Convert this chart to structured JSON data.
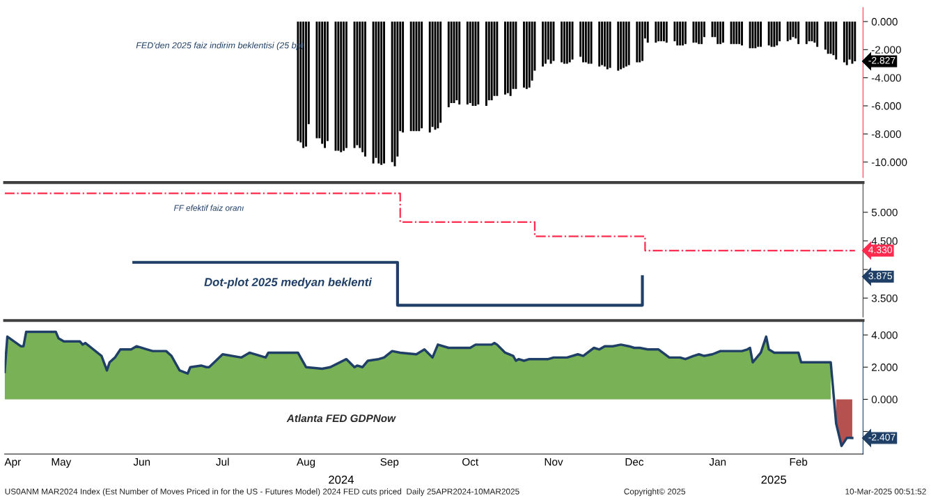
{
  "chart_data": [
    {
      "type": "bar",
      "xlim": [
        "2024-04-25",
        "2025-03-10"
      ],
      "ylim": [
        -11.1,
        1.0
      ],
      "tick_labels": "y",
      "yticks": [
        {
          "value": 0,
          "label": "0.000"
        },
        {
          "value": -2,
          "label": "-2.000"
        },
        {
          "value": -4,
          "label": "-4.000"
        },
        {
          "value": -6,
          "label": "-6.000"
        },
        {
          "value": -8,
          "label": "-8.000"
        },
        {
          "value": -10,
          "label": "-10.000"
        }
      ],
      "series": [
        {
          "name": "FED'den 2025 faiz indirim beklentisi (25 bp)",
          "color": "#000000",
          "x": [
            "2024-08-12",
            "2024-08-13",
            "2024-08-14",
            "2024-08-15",
            "2024-08-16",
            "2024-08-19",
            "2024-08-20",
            "2024-08-21",
            "2024-08-22",
            "2024-08-23",
            "2024-08-26",
            "2024-08-27",
            "2024-08-28",
            "2024-08-29",
            "2024-08-30",
            "2024-09-02",
            "2024-09-03",
            "2024-09-04",
            "2024-09-05",
            "2024-09-06",
            "2024-09-09",
            "2024-09-10",
            "2024-09-11",
            "2024-09-12",
            "2024-09-13",
            "2024-09-16",
            "2024-09-17",
            "2024-09-18",
            "2024-09-19",
            "2024-09-20",
            "2024-09-23",
            "2024-09-24",
            "2024-09-25",
            "2024-09-26",
            "2024-09-27",
            "2024-09-30",
            "2024-10-01",
            "2024-10-02",
            "2024-10-03",
            "2024-10-04",
            "2024-10-07",
            "2024-10-08",
            "2024-10-09",
            "2024-10-10",
            "2024-10-11",
            "2024-10-14",
            "2024-10-15",
            "2024-10-16",
            "2024-10-17",
            "2024-10-18",
            "2024-10-21",
            "2024-10-22",
            "2024-10-23",
            "2024-10-24",
            "2024-10-25",
            "2024-10-28",
            "2024-10-29",
            "2024-10-30",
            "2024-10-31",
            "2024-11-01",
            "2024-11-04",
            "2024-11-05",
            "2024-11-06",
            "2024-11-07",
            "2024-11-08",
            "2024-11-11",
            "2024-11-12",
            "2024-11-13",
            "2024-11-14",
            "2024-11-15",
            "2024-11-18",
            "2024-11-19",
            "2024-11-20",
            "2024-11-21",
            "2024-11-22",
            "2024-11-25",
            "2024-11-26",
            "2024-11-27",
            "2024-11-28",
            "2024-11-29",
            "2024-12-02",
            "2024-12-03",
            "2024-12-04",
            "2024-12-05",
            "2024-12-06",
            "2024-12-09",
            "2024-12-10",
            "2024-12-11",
            "2024-12-12",
            "2024-12-13",
            "2024-12-16",
            "2024-12-17",
            "2024-12-18",
            "2024-12-19",
            "2024-12-20",
            "2024-12-23",
            "2024-12-24",
            "2024-12-25",
            "2024-12-26",
            "2024-12-27",
            "2024-12-30",
            "2024-12-31",
            "2025-01-01",
            "2025-01-02",
            "2025-01-03",
            "2025-01-06",
            "2025-01-07",
            "2025-01-08",
            "2025-01-09",
            "2025-01-10",
            "2025-01-13",
            "2025-01-14",
            "2025-01-15",
            "2025-01-16",
            "2025-01-17",
            "2025-01-20",
            "2025-01-21",
            "2025-01-22",
            "2025-01-23",
            "2025-01-24",
            "2025-01-27",
            "2025-01-28",
            "2025-01-29",
            "2025-01-30",
            "2025-01-31",
            "2025-02-03",
            "2025-02-04",
            "2025-02-05",
            "2025-02-06",
            "2025-02-07",
            "2025-02-10",
            "2025-02-11",
            "2025-02-12",
            "2025-02-13",
            "2025-02-14",
            "2025-02-17",
            "2025-02-18",
            "2025-02-19",
            "2025-02-20",
            "2025-02-21",
            "2025-02-24",
            "2025-02-25",
            "2025-02-26",
            "2025-02-27",
            "2025-02-28",
            "2025-03-03",
            "2025-03-04",
            "2025-03-05",
            "2025-03-06",
            "2025-03-07"
          ],
          "values": [
            -8.5,
            -8.6,
            -9.0,
            -8.9,
            -7.3,
            -8.3,
            -8.3,
            -8.7,
            -9.0,
            -8.5,
            -9.2,
            -9.2,
            -9.3,
            -9.2,
            -9.0,
            -9.0,
            -8.8,
            -9.0,
            -9.3,
            -9.6,
            -10.1,
            -9.7,
            -10.1,
            -10.2,
            -10.1,
            -10.0,
            -10.3,
            -9.6,
            -7.8,
            -7.9,
            -7.8,
            -7.8,
            -7.8,
            -7.8,
            -7.6,
            -7.9,
            -7.5,
            -7.7,
            -7.6,
            -7.2,
            -6.1,
            -5.8,
            -5.8,
            -5.6,
            -5.9,
            -5.9,
            -5.8,
            -6.0,
            -6.0,
            -5.9,
            -6.0,
            -5.6,
            -5.6,
            -5.3,
            -5.3,
            -5.2,
            -5.1,
            -5.3,
            -4.8,
            -4.8,
            -4.7,
            -4.8,
            -4.7,
            -4.2,
            -3.5,
            -3.2,
            -3.0,
            -2.7,
            -3.0,
            -2.8,
            -2.9,
            -3.0,
            -3.0,
            -2.9,
            -2.7,
            -2.5,
            -2.9,
            -2.9,
            -3.0,
            -3.0,
            -3.2,
            -3.1,
            -3.2,
            -3.4,
            -3.3,
            -3.5,
            -3.4,
            -3.3,
            -3.2,
            -3.1,
            -2.9,
            -2.9,
            -2.8,
            -1.2,
            -1.5,
            -1.5,
            -1.4,
            -1.4,
            -1.4,
            -1.5,
            -1.4,
            -1.7,
            -1.7,
            -1.7,
            -1.6,
            -1.5,
            -1.5,
            -1.6,
            -1.6,
            -1.1,
            -1.1,
            -1.1,
            -1.6,
            -1.6,
            -1.5,
            -1.6,
            -1.6,
            -1.6,
            -1.6,
            -1.7,
            -1.9,
            -1.9,
            -1.9,
            -1.8,
            -1.8,
            -1.7,
            -1.8,
            -1.8,
            -1.7,
            -1.4,
            -1.4,
            -1.3,
            -1.1,
            -1.2,
            -1.6,
            -1.6,
            -1.4,
            -1.4,
            -1.5,
            -1.8,
            -2.0,
            -2.3,
            -2.3,
            -2.4,
            -2.7,
            -2.9,
            -3.1,
            -2.7,
            -3.0,
            -2.827
          ]
        }
      ],
      "annotations": [
        {
          "text": "-2.827",
          "x": "2025-03-07",
          "y": -2.827
        }
      ]
    },
    {
      "type": "step",
      "xlim": [
        "2024-04-25",
        "2025-03-10"
      ],
      "ylim": [
        3.17,
        5.52
      ],
      "tick_labels": "y",
      "yticks": [
        {
          "value": 3.5,
          "label": "3.500"
        },
        {
          "value": 4.0,
          "label": null
        },
        {
          "value": 4.5,
          "label": "4.500"
        },
        {
          "value": 5.0,
          "label": "5.000"
        }
      ],
      "series": [
        {
          "name": "FF efektif faiz oranı",
          "color": "#ff2a4d",
          "line_style": "dashdot",
          "x": [
            "2024-04-25",
            "2024-09-19",
            "2024-11-08",
            "2024-12-19",
            "2025-03-07"
          ],
          "values": [
            5.33,
            4.83,
            4.58,
            4.33,
            4.33
          ]
        },
        {
          "name": "Dot-plot 2025 medyan beklenti",
          "color": "#1f3f66",
          "line_style": "solid",
          "x": [
            "2024-06-12",
            "2024-09-18",
            "2024-12-18"
          ],
          "values": [
            4.125,
            3.375,
            3.875
          ]
        }
      ],
      "annotations": [
        {
          "text": "4.330",
          "x": "2025-03-07",
          "y": 4.33
        },
        "3.875"
      ]
    },
    {
      "type": "area",
      "xlim": [
        "2024-04-25",
        "2025-03-10"
      ],
      "ylim": [
        -3.4,
        4.9
      ],
      "yticks": [
        {
          "value": -2,
          "label": null
        },
        {
          "value": 0,
          "label": "0.000"
        },
        {
          "value": 2,
          "label": "2.000"
        },
        {
          "value": 4,
          "label": "4.000"
        }
      ],
      "xticks": [
        {
          "value": "2024-04-28",
          "label": "Apr"
        },
        {
          "value": "2024-05-16",
          "label": "May"
        },
        {
          "value": "2024-06-15",
          "label": "Jun"
        },
        {
          "value": "2024-07-15",
          "label": "Jul"
        },
        {
          "value": "2024-08-15",
          "label": "Aug"
        },
        {
          "value": "2024-09-15",
          "label": "Sep"
        },
        {
          "value": "2024-10-15",
          "label": "Oct"
        },
        {
          "value": "2024-11-15",
          "label": "Nov"
        },
        {
          "value": "2024-12-15",
          "label": "Dec"
        },
        {
          "value": "2025-01-15",
          "label": "Jan"
        },
        {
          "value": "2025-02-14",
          "label": "Feb"
        }
      ],
      "series": [
        {
          "type": "area",
          "color": "#79b256",
          "x": [
            "2024-04-25",
            "2024-04-26",
            "2024-05-01",
            "2024-05-02",
            "2024-05-03",
            "2024-05-08",
            "2024-05-14",
            "2024-05-15",
            "2024-05-17",
            "2024-05-23",
            "2024-05-24",
            "2024-05-25",
            "2024-05-31",
            "2024-06-02",
            "2024-06-03",
            "2024-06-05",
            "2024-06-07",
            "2024-06-11",
            "2024-06-13",
            "2024-06-17",
            "2024-06-19",
            "2024-06-24",
            "2024-06-26",
            "2024-06-29",
            "2024-07-02",
            "2024-07-03",
            "2024-07-07",
            "2024-07-09",
            "2024-07-10",
            "2024-07-15",
            "2024-07-22",
            "2024-07-25",
            "2024-07-31",
            "2024-08-01",
            "2024-08-12",
            "2024-08-15",
            "2024-08-21",
            "2024-08-24",
            "2024-08-30",
            "2024-09-02",
            "2024-09-03",
            "2024-09-05",
            "2024-09-07",
            "2024-09-11",
            "2024-09-13",
            "2024-09-16",
            "2024-09-19",
            "2024-09-25",
            "2024-09-28",
            "2024-10-01",
            "2024-10-03",
            "2024-10-07",
            "2024-10-15",
            "2024-10-17",
            "2024-10-23",
            "2024-10-24",
            "2024-10-25",
            "2024-10-28",
            "2024-10-31",
            "2024-11-01",
            "2024-11-02",
            "2024-11-04",
            "2024-11-06",
            "2024-11-13",
            "2024-11-15",
            "2024-11-20",
            "2024-11-24",
            "2024-11-26",
            "2024-11-30",
            "2024-12-02",
            "2024-12-04",
            "2024-12-07",
            "2024-12-10",
            "2024-12-13",
            "2024-12-15",
            "2024-12-17",
            "2024-12-20",
            "2024-12-24",
            "2024-12-28",
            "2025-01-01",
            "2025-01-03",
            "2025-01-06",
            "2025-01-08",
            "2025-01-10",
            "2025-01-13",
            "2025-01-16",
            "2025-01-24",
            "2025-01-26",
            "2025-01-27",
            "2025-01-28",
            "2025-01-31",
            "2025-02-02",
            "2025-02-03",
            "2025-02-05",
            "2025-02-14",
            "2025-02-15",
            "2025-02-26"
          ],
          "values": [
            1.7,
            3.9,
            3.3,
            3.3,
            4.2,
            4.2,
            4.2,
            3.8,
            3.6,
            3.6,
            3.4,
            3.5,
            2.7,
            1.8,
            2.3,
            2.6,
            3.1,
            3.1,
            3.3,
            3.1,
            3.0,
            3.0,
            2.7,
            1.8,
            1.6,
            2.0,
            2.1,
            2.0,
            2.0,
            2.8,
            2.6,
            2.9,
            2.6,
            2.9,
            2.9,
            2.0,
            1.9,
            2.0,
            2.5,
            2.0,
            2.1,
            2.0,
            2.4,
            2.5,
            2.6,
            3.0,
            2.9,
            2.8,
            3.1,
            2.6,
            3.4,
            3.2,
            3.2,
            3.4,
            3.4,
            3.5,
            3.4,
            2.9,
            2.7,
            2.4,
            2.5,
            2.4,
            2.5,
            2.5,
            2.6,
            2.6,
            2.8,
            2.7,
            3.2,
            3.1,
            3.3,
            3.3,
            3.4,
            3.3,
            3.2,
            3.2,
            3.1,
            3.1,
            2.6,
            2.6,
            2.5,
            2.7,
            2.8,
            2.7,
            2.8,
            3.0,
            3.0,
            3.1,
            3.2,
            2.3,
            2.9,
            3.9,
            3.1,
            2.9,
            2.9,
            2.3,
            2.3
          ]
        },
        {
          "type": "area",
          "color": "#b5514e",
          "x": [
            "2025-02-28",
            "2025-03-02",
            "2025-03-04",
            "2025-03-05",
            "2025-03-06"
          ],
          "values": [
            -1.5,
            -2.9,
            -2.4,
            -2.4,
            -2.407
          ]
        },
        {
          "type": "line",
          "name": "Atlanta FED GDPNow",
          "color": "#1f3f66",
          "x": [
            "2024-04-25",
            "2024-04-26",
            "2024-05-01",
            "2024-05-02",
            "2024-05-03",
            "2024-05-08",
            "2024-05-14",
            "2024-05-15",
            "2024-05-17",
            "2024-05-23",
            "2024-05-24",
            "2024-05-25",
            "2024-05-31",
            "2024-06-02",
            "2024-06-03",
            "2024-06-05",
            "2024-06-07",
            "2024-06-11",
            "2024-06-13",
            "2024-06-17",
            "2024-06-19",
            "2024-06-24",
            "2024-06-26",
            "2024-06-29",
            "2024-07-02",
            "2024-07-03",
            "2024-07-07",
            "2024-07-09",
            "2024-07-10",
            "2024-07-15",
            "2024-07-22",
            "2024-07-25",
            "2024-07-31",
            "2024-08-01",
            "2024-08-12",
            "2024-08-15",
            "2024-08-21",
            "2024-08-24",
            "2024-08-30",
            "2024-09-02",
            "2024-09-03",
            "2024-09-05",
            "2024-09-07",
            "2024-09-11",
            "2024-09-13",
            "2024-09-16",
            "2024-09-19",
            "2024-09-25",
            "2024-09-28",
            "2024-10-01",
            "2024-10-03",
            "2024-10-07",
            "2024-10-15",
            "2024-10-17",
            "2024-10-23",
            "2024-10-24",
            "2024-10-25",
            "2024-10-28",
            "2024-10-31",
            "2024-11-01",
            "2024-11-02",
            "2024-11-04",
            "2024-11-06",
            "2024-11-13",
            "2024-11-15",
            "2024-11-20",
            "2024-11-24",
            "2024-11-26",
            "2024-11-30",
            "2024-12-02",
            "2024-12-04",
            "2024-12-07",
            "2024-12-10",
            "2024-12-13",
            "2024-12-15",
            "2024-12-17",
            "2024-12-20",
            "2024-12-24",
            "2024-12-28",
            "2025-01-01",
            "2025-01-03",
            "2025-01-06",
            "2025-01-08",
            "2025-01-10",
            "2025-01-13",
            "2025-01-16",
            "2025-01-24",
            "2025-01-26",
            "2025-01-27",
            "2025-01-28",
            "2025-01-31",
            "2025-02-02",
            "2025-02-03",
            "2025-02-05",
            "2025-02-14",
            "2025-02-15",
            "2025-02-26",
            "2025-02-28",
            "2025-03-02",
            "2025-03-04",
            "2025-03-05",
            "2025-03-06"
          ],
          "values": [
            1.7,
            3.9,
            3.3,
            3.3,
            4.2,
            4.2,
            4.2,
            3.8,
            3.6,
            3.6,
            3.4,
            3.5,
            2.7,
            1.8,
            2.3,
            2.6,
            3.1,
            3.1,
            3.3,
            3.1,
            3.0,
            3.0,
            2.7,
            1.8,
            1.6,
            2.0,
            2.1,
            2.0,
            2.0,
            2.8,
            2.6,
            2.9,
            2.6,
            2.9,
            2.9,
            2.0,
            1.9,
            2.0,
            2.5,
            2.0,
            2.1,
            2.0,
            2.4,
            2.5,
            2.6,
            3.0,
            2.9,
            2.8,
            3.1,
            2.6,
            3.4,
            3.2,
            3.2,
            3.4,
            3.4,
            3.5,
            3.4,
            2.9,
            2.7,
            2.4,
            2.5,
            2.4,
            2.5,
            2.5,
            2.6,
            2.6,
            2.8,
            2.7,
            3.2,
            3.1,
            3.3,
            3.3,
            3.4,
            3.3,
            3.2,
            3.2,
            3.1,
            3.1,
            2.6,
            2.6,
            2.5,
            2.7,
            2.8,
            2.7,
            2.8,
            3.0,
            3.0,
            3.1,
            3.2,
            2.3,
            2.9,
            3.9,
            3.1,
            2.9,
            2.9,
            2.3,
            2.3,
            -1.5,
            -2.9,
            -2.4,
            -2.4,
            -2.407
          ]
        }
      ],
      "annotations": [
        {
          "text": "-2.407",
          "x": "2025-03-06",
          "y": -2.407
        },
        "2024",
        "2025",
        "US0ANM MAR2024 Index (Est Number of Moves Priced in for the US - Futures Model) 2024 FED cuts priced  Daily 25APR2024-10MAR2025",
        "Copyright© 2025",
        "10-Mar-2025 00:51:52"
      ]
    }
  ]
}
